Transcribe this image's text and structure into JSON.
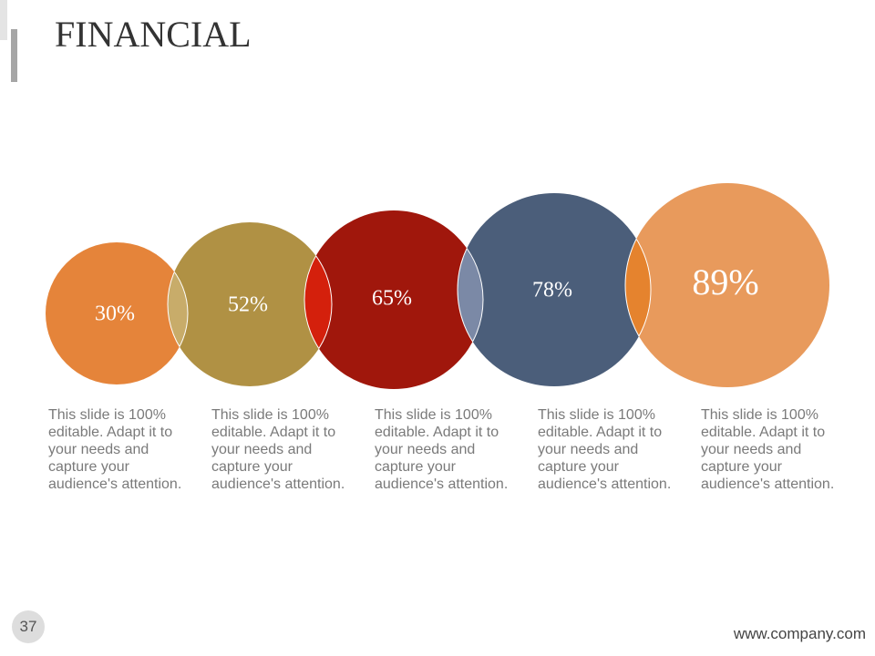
{
  "title": "FINANCIAL",
  "items": [
    {
      "label": "30%",
      "description": "This slide is 100% editable. Adapt it to your needs and capture your audience's attention."
    },
    {
      "label": "52%",
      "description": "This slide is 100% editable. Adapt it to your needs and capture your audience's attention."
    },
    {
      "label": "65%",
      "description": "This slide is 100% editable. Adapt it to your needs and capture your audience's attention."
    },
    {
      "label": "78%",
      "description": "This slide is 100% editable. Adapt it to your needs and capture your audience's attention."
    },
    {
      "label": "89%",
      "description": "This slide is 100% editable. Adapt it to your needs and capture your audience's attention."
    }
  ],
  "page_number": "37",
  "footer": "www.company.com"
}
